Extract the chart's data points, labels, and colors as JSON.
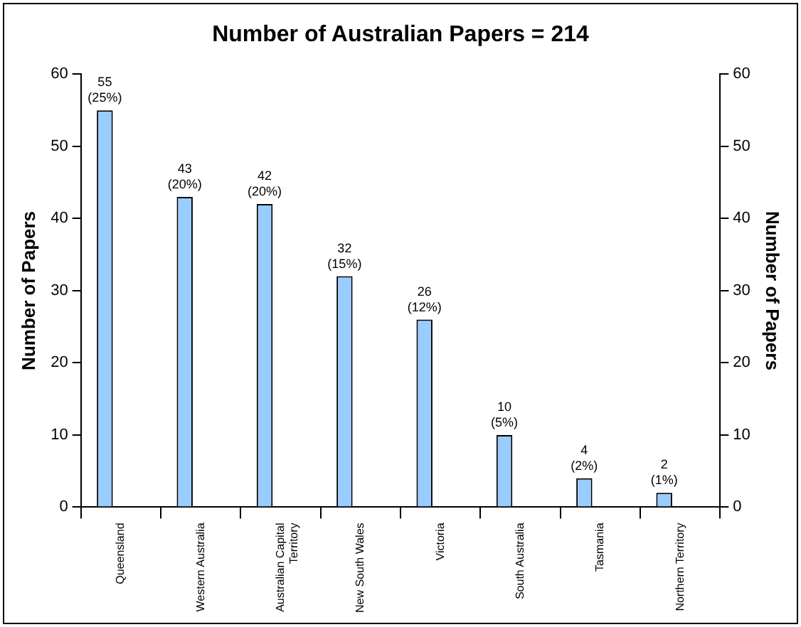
{
  "chart_data": {
    "type": "bar",
    "title": "Number of Australian Papers = 214",
    "ylabel": "Number of Papers",
    "y2label": "Number of Papers",
    "categories": [
      "Queensland",
      "Western Australia",
      "Australian Capital Territory",
      "New South Wales",
      "Victoria",
      "South Australia",
      "Tasmania",
      "Northern Territory"
    ],
    "values": [
      55,
      43,
      42,
      32,
      26,
      10,
      4,
      2
    ],
    "color": "#99ccff",
    "value_labels": [
      "55 (25%)",
      "43 (20%)",
      "42 (20%)",
      "32 (15%)",
      "26 (12%)",
      "10 (5%)",
      "4 (2%)",
      "2 (1%)"
    ],
    "ylim": [
      0,
      60
    ],
    "yticks": [
      0,
      10,
      20,
      30,
      40,
      50,
      60
    ],
    "y2lim": [
      0,
      60
    ],
    "y2ticks": [
      0,
      10,
      20,
      30,
      40,
      50,
      60
    ],
    "grid": false,
    "legend": false
  }
}
